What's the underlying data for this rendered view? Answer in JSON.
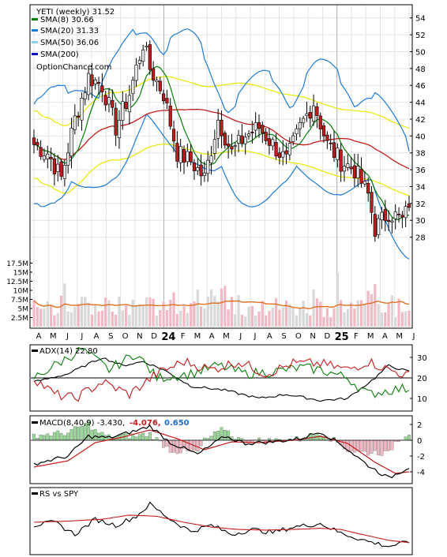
{
  "chart_data": [
    {
      "type": "candlestick",
      "ticker_label": "YETI (weekly) 31.52",
      "watermark": "OptionChance.com",
      "legend": [
        {
          "label": "SMA(8) 30.66",
          "color": "#0a7d0a"
        },
        {
          "label": "SMA(20) 31.33",
          "color": "#1e7bd6"
        },
        {
          "label": "SMA(50) 36.06",
          "color": "#8fd0f0"
        },
        {
          "label": "SMA(200)",
          "color": "#1010c0"
        }
      ],
      "colors": {
        "up": "#e8e8e8",
        "down": "#c21c1c",
        "volume_up": "#d8d8d8",
        "volume_down": "#f2b8c4",
        "sma8": "#0a7d0a",
        "sma20": "#1e7bd6",
        "sma50_bands": "#e8e800",
        "long_ma": "#c21c1c",
        "volume_ma": "#e07020"
      },
      "y_ticks": [
        28,
        30,
        32,
        34,
        36,
        38,
        40,
        42,
        44,
        46,
        48,
        50,
        52,
        54
      ],
      "ylim": [
        26,
        55
      ],
      "volume_ticks": [
        "2.5M",
        "5M",
        "7.5M",
        "10M",
        "12.5M",
        "15M",
        "17.5M"
      ],
      "x_ticks": [
        "A",
        "M",
        "J",
        "J",
        "A",
        "S",
        "O",
        "N",
        "D",
        "24",
        "F",
        "M",
        "A",
        "M",
        "J",
        "J",
        "A",
        "S",
        "O",
        "N",
        "D",
        "25",
        "F",
        "M",
        "A",
        "M",
        "J"
      ],
      "close_anchors": [
        [
          0,
          39
        ],
        [
          4,
          38
        ],
        [
          8,
          35
        ],
        [
          12,
          42
        ],
        [
          16,
          47
        ],
        [
          20,
          46
        ],
        [
          24,
          41
        ],
        [
          28,
          45
        ],
        [
          32,
          51
        ],
        [
          34,
          48
        ],
        [
          38,
          45
        ],
        [
          42,
          38
        ],
        [
          46,
          37
        ],
        [
          50,
          35
        ],
        [
          54,
          42
        ],
        [
          58,
          38
        ],
        [
          62,
          40
        ],
        [
          66,
          41
        ],
        [
          70,
          39
        ],
        [
          74,
          37
        ],
        [
          78,
          41
        ],
        [
          82,
          44
        ],
        [
          86,
          39
        ],
        [
          90,
          37
        ],
        [
          94,
          36
        ],
        [
          98,
          33
        ],
        [
          100,
          29
        ],
        [
          104,
          31
        ],
        [
          108,
          30
        ],
        [
          110,
          31.52
        ]
      ]
    },
    {
      "type": "line",
      "title": "ADX(14) 22.80",
      "y_ticks": [
        10,
        20,
        30
      ],
      "ylim": [
        5,
        35
      ],
      "series": [
        {
          "color": "#000000",
          "anchors": [
            [
              0,
              18
            ],
            [
              10,
              22
            ],
            [
              20,
              30
            ],
            [
              26,
              26
            ],
            [
              32,
              28
            ],
            [
              38,
              24
            ],
            [
              46,
              16
            ],
            [
              56,
              14
            ],
            [
              66,
              10
            ],
            [
              74,
              12
            ],
            [
              84,
              9
            ],
            [
              92,
              10
            ],
            [
              100,
              20
            ],
            [
              104,
              26
            ],
            [
              110,
              23
            ]
          ]
        },
        {
          "color": "#0a7d0a",
          "anchors": [
            [
              0,
              20
            ],
            [
              8,
              28
            ],
            [
              14,
              34
            ],
            [
              22,
              24
            ],
            [
              30,
              32
            ],
            [
              36,
              20
            ],
            [
              46,
              22
            ],
            [
              54,
              26
            ],
            [
              62,
              22
            ],
            [
              70,
              23
            ],
            [
              78,
              25
            ],
            [
              84,
              24
            ],
            [
              92,
              20
            ],
            [
              98,
              12
            ],
            [
              104,
              14
            ],
            [
              110,
              15
            ]
          ]
        },
        {
          "color": "#c21c1c",
          "anchors": [
            [
              0,
              20
            ],
            [
              6,
              12
            ],
            [
              12,
              10
            ],
            [
              20,
              18
            ],
            [
              28,
              12
            ],
            [
              36,
              22
            ],
            [
              44,
              28
            ],
            [
              52,
              24
            ],
            [
              60,
              28
            ],
            [
              68,
              22
            ],
            [
              76,
              27
            ],
            [
              84,
              27
            ],
            [
              92,
              24
            ],
            [
              98,
              28
            ],
            [
              104,
              24
            ],
            [
              110,
              21
            ]
          ]
        }
      ]
    },
    {
      "type": "macd",
      "title": "MACD(8,40,9) -3.430,",
      "signal_label": "-4.076,",
      "hist_label": "0.650",
      "y_ticks": [
        2,
        0,
        -2,
        -4
      ],
      "ylim": [
        -5.2,
        2.6
      ],
      "series": [
        {
          "color": "#000000",
          "anchors": [
            [
              0,
              -3
            ],
            [
              10,
              -2
            ],
            [
              16,
              0.5
            ],
            [
              22,
              0.3
            ],
            [
              30,
              1.2
            ],
            [
              34,
              1.8
            ],
            [
              40,
              -0.3
            ],
            [
              48,
              -1.8
            ],
            [
              56,
              0.5
            ],
            [
              62,
              -0.4
            ],
            [
              70,
              -0.2
            ],
            [
              78,
              0.2
            ],
            [
              84,
              1.1
            ],
            [
              90,
              -0.5
            ],
            [
              98,
              -3.2
            ],
            [
              104,
              -4.8
            ],
            [
              110,
              -3.4
            ]
          ]
        },
        {
          "color": "#c21c1c",
          "anchors": [
            [
              0,
              -3.4
            ],
            [
              10,
              -2.6
            ],
            [
              18,
              -0.3
            ],
            [
              26,
              0.4
            ],
            [
              34,
              1.3
            ],
            [
              42,
              0.2
            ],
            [
              50,
              -1.2
            ],
            [
              58,
              -0.2
            ],
            [
              66,
              -0.3
            ],
            [
              76,
              0
            ],
            [
              84,
              0.5
            ],
            [
              92,
              -0.4
            ],
            [
              100,
              -2.8
            ],
            [
              106,
              -4.2
            ],
            [
              110,
              -4.0
            ]
          ]
        }
      ]
    },
    {
      "type": "line",
      "title": "RS vs SPY",
      "series": [
        {
          "color": "#000000",
          "anchors": [
            [
              0,
              0.45
            ],
            [
              6,
              0.5
            ],
            [
              12,
              0.3
            ],
            [
              18,
              0.55
            ],
            [
              24,
              0.45
            ],
            [
              30,
              0.6
            ],
            [
              34,
              0.8
            ],
            [
              40,
              0.55
            ],
            [
              46,
              0.35
            ],
            [
              52,
              0.45
            ],
            [
              58,
              0.3
            ],
            [
              64,
              0.38
            ],
            [
              70,
              0.33
            ],
            [
              76,
              0.42
            ],
            [
              84,
              0.48
            ],
            [
              90,
              0.32
            ],
            [
              98,
              0.18
            ],
            [
              104,
              0.1
            ],
            [
              110,
              0.17
            ]
          ]
        },
        {
          "color": "#c21c1c",
          "anchors": [
            [
              0,
              0.5
            ],
            [
              10,
              0.52
            ],
            [
              20,
              0.55
            ],
            [
              28,
              0.62
            ],
            [
              36,
              0.6
            ],
            [
              44,
              0.5
            ],
            [
              52,
              0.42
            ],
            [
              60,
              0.38
            ],
            [
              68,
              0.37
            ],
            [
              76,
              0.38
            ],
            [
              84,
              0.4
            ],
            [
              90,
              0.38
            ],
            [
              96,
              0.3
            ],
            [
              104,
              0.2
            ],
            [
              110,
              0.16
            ]
          ]
        }
      ]
    }
  ]
}
